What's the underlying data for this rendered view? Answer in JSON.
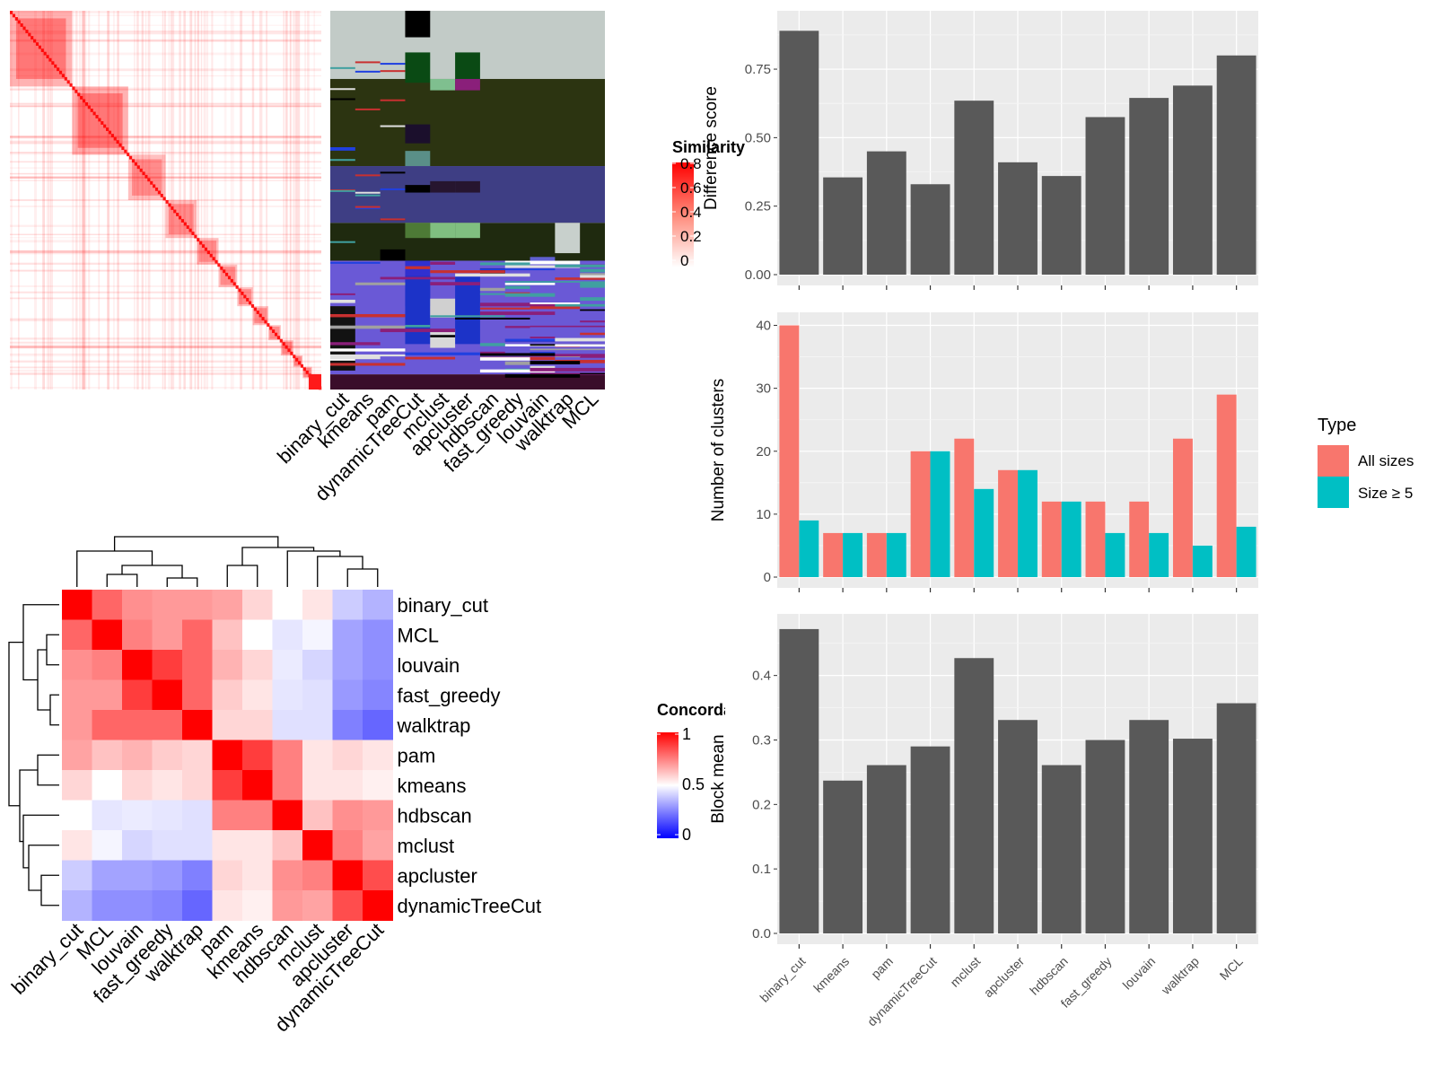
{
  "similarity_legend": {
    "title": "Similarity",
    "ticks": [
      "0.8",
      "0.6",
      "0.4",
      "0.2",
      "0"
    ]
  },
  "concordance_legend": {
    "title": "Concordance",
    "ticks": [
      "1",
      "0.5",
      "0"
    ]
  },
  "type_legend": {
    "title": "Type",
    "items": [
      "All sizes",
      "Size ≥ 5"
    ],
    "colors": [
      "#F8766D",
      "#00BFC4"
    ]
  },
  "chart_data": [
    {
      "type": "bar",
      "categories": [
        "binary_cut",
        "kmeans",
        "pam",
        "dynamicTreeCut",
        "mclust",
        "apcluster",
        "hdbscan",
        "fast_greedy",
        "louvain",
        "walktrap",
        "MCL"
      ],
      "values": [
        0.89,
        0.355,
        0.45,
        0.33,
        0.635,
        0.41,
        0.36,
        0.575,
        0.645,
        0.69,
        0.8
      ],
      "ylabel": "Difference score",
      "ylim": [
        0,
        0.95
      ],
      "yticks": [
        "0.00",
        "0.25",
        "0.50",
        "0.75"
      ],
      "grid": true
    },
    {
      "type": "bar",
      "categories": [
        "binary_cut",
        "kmeans",
        "pam",
        "dynamicTreeCut",
        "mclust",
        "apcluster",
        "hdbscan",
        "fast_greedy",
        "louvain",
        "walktrap",
        "MCL"
      ],
      "series": [
        {
          "name": "All sizes",
          "values": [
            40,
            7,
            7,
            20,
            22,
            17,
            12,
            12,
            12,
            22,
            29
          ]
        },
        {
          "name": "Size ≥ 5",
          "values": [
            9,
            7,
            7,
            20,
            14,
            17,
            12,
            7,
            7,
            5,
            8
          ]
        }
      ],
      "ylabel": "Number of clusters",
      "ylim": [
        0,
        41.5
      ],
      "yticks": [
        "0",
        "10",
        "20",
        "30",
        "40"
      ],
      "legend": "right",
      "grid": true
    },
    {
      "type": "bar",
      "categories": [
        "binary_cut",
        "kmeans",
        "pam",
        "dynamicTreeCut",
        "mclust",
        "apcluster",
        "hdbscan",
        "fast_greedy",
        "louvain",
        "walktrap",
        "MCL"
      ],
      "values": [
        0.472,
        0.237,
        0.261,
        0.29,
        0.427,
        0.331,
        0.261,
        0.3,
        0.331,
        0.302,
        0.357
      ],
      "ylabel": "Block mean",
      "ylim": [
        0,
        0.49
      ],
      "yticks": [
        "0.0",
        "0.1",
        "0.2",
        "0.3",
        "0.4"
      ],
      "xticklabels": [
        "binary_cut",
        "kmeans",
        "pam",
        "dynamicTreeCut",
        "mclust",
        "apcluster",
        "hdbscan",
        "fast_greedy",
        "louvain",
        "walktrap",
        "MCL"
      ],
      "grid": true
    },
    {
      "type": "heatmap",
      "rows": [
        "binary_cut",
        "MCL",
        "louvain",
        "fast_greedy",
        "walktrap",
        "pam",
        "kmeans",
        "hdbscan",
        "mclust",
        "apcluster",
        "dynamicTreeCut"
      ],
      "cols": [
        "binary_cut",
        "MCL",
        "louvain",
        "fast_greedy",
        "walktrap",
        "pam",
        "kmeans",
        "hdbscan",
        "mclust",
        "apcluster",
        "dynamicTreeCut"
      ],
      "values": [
        [
          1.0,
          0.8,
          0.72,
          0.7,
          0.7,
          0.68,
          0.58,
          0.5,
          0.55,
          0.4,
          0.35
        ],
        [
          0.8,
          1.0,
          0.75,
          0.7,
          0.8,
          0.62,
          0.5,
          0.45,
          0.48,
          0.32,
          0.28
        ],
        [
          0.72,
          0.75,
          1.0,
          0.88,
          0.8,
          0.65,
          0.58,
          0.46,
          0.42,
          0.32,
          0.28
        ],
        [
          0.7,
          0.7,
          0.88,
          1.0,
          0.8,
          0.6,
          0.55,
          0.45,
          0.44,
          0.3,
          0.26
        ],
        [
          0.7,
          0.8,
          0.8,
          0.8,
          1.0,
          0.58,
          0.58,
          0.44,
          0.44,
          0.25,
          0.2
        ],
        [
          0.68,
          0.62,
          0.65,
          0.6,
          0.58,
          1.0,
          0.88,
          0.75,
          0.55,
          0.58,
          0.55
        ],
        [
          0.58,
          0.5,
          0.58,
          0.55,
          0.58,
          0.88,
          1.0,
          0.75,
          0.55,
          0.55,
          0.53
        ],
        [
          0.5,
          0.45,
          0.46,
          0.45,
          0.44,
          0.75,
          0.75,
          1.0,
          0.62,
          0.72,
          0.7
        ],
        [
          0.55,
          0.48,
          0.42,
          0.44,
          0.44,
          0.55,
          0.55,
          0.62,
          1.0,
          0.75,
          0.68
        ],
        [
          0.4,
          0.32,
          0.32,
          0.3,
          0.25,
          0.58,
          0.55,
          0.72,
          0.75,
          1.0,
          0.85
        ],
        [
          0.35,
          0.28,
          0.28,
          0.26,
          0.2,
          0.55,
          0.53,
          0.7,
          0.68,
          0.85,
          1.0
        ]
      ],
      "color_scale": {
        "low": "#0000FF",
        "mid": "#FFFFFF",
        "high": "#FF0000"
      }
    },
    {
      "type": "heatmap",
      "columns": [
        "binary_cut",
        "kmeans",
        "pam",
        "dynamicTreeCut",
        "mclust",
        "apcluster",
        "hdbscan",
        "fast_greedy",
        "louvain",
        "walktrap",
        "MCL"
      ],
      "block_sizes": [
        0.2,
        0.18,
        0.12,
        0.1,
        0.07,
        0.06,
        0.05,
        0.05,
        0.04,
        0.04,
        0.03,
        0.03,
        0.03
      ],
      "color_scale": {
        "low": "#FFFFFF",
        "high": "#FF0000",
        "max": 0.8
      }
    }
  ]
}
